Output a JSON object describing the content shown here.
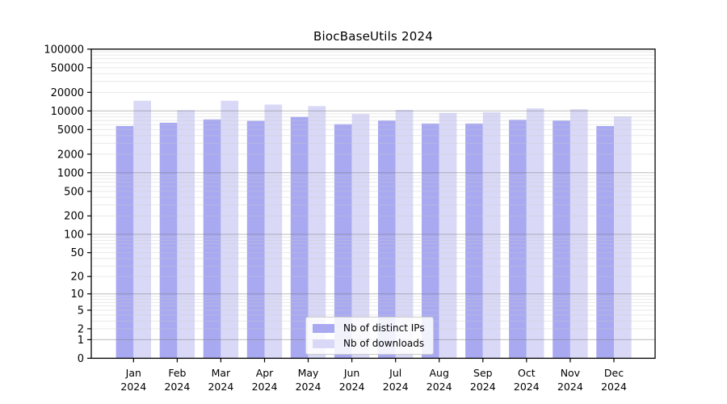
{
  "chart_data": {
    "type": "bar",
    "title": "BiocBaseUtils 2024",
    "categories": [
      "Jan",
      "Feb",
      "Mar",
      "Apr",
      "May",
      "Jun",
      "Jul",
      "Aug",
      "Sep",
      "Oct",
      "Nov",
      "Dec"
    ],
    "x_tick_second_line": "2024",
    "series": [
      {
        "name": "Nb of distinct IPs",
        "color": "#a9a9f2",
        "values": [
          5700,
          6450,
          7300,
          6900,
          8000,
          6100,
          7000,
          6250,
          6250,
          7200,
          7000,
          5700
        ]
      },
      {
        "name": "Nb of downloads",
        "color": "#d9d9f7",
        "values": [
          14600,
          10300,
          14600,
          12700,
          12000,
          8900,
          10400,
          9300,
          9500,
          11000,
          10700,
          8200
        ]
      }
    ],
    "y_axis": {
      "scale": "log1p",
      "tick_values": [
        0,
        1,
        2,
        5,
        10,
        20,
        50,
        100,
        200,
        500,
        1000,
        2000,
        5000,
        10000,
        20000,
        50000,
        100000
      ],
      "range": [
        0,
        100000
      ]
    },
    "legend": {
      "position": "lower center"
    },
    "grid": {
      "horizontal": true,
      "major_color": "#7a7a7a",
      "minor_color": "#c8c8c8"
    },
    "colors": {
      "axis": "#000000",
      "tick_label": "#000000",
      "background": "#ffffff"
    }
  }
}
